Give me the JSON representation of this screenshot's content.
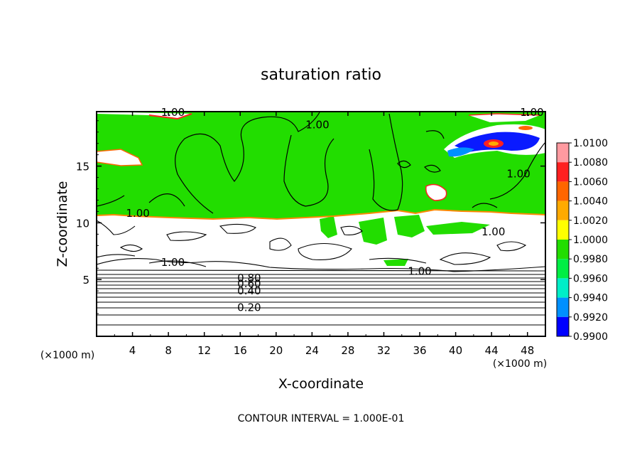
{
  "chart_data": {
    "type": "heatmap",
    "title": "saturation ratio",
    "xlabel": "X-coordinate",
    "ylabel": "Z-coordinate",
    "x_unit": "(×1000 m)",
    "z_unit": "(×1000 m)",
    "footer": "CONTOUR INTERVAL = 1.000E-01",
    "xlim": [
      0,
      50
    ],
    "ylim": [
      0,
      19.8
    ],
    "x_ticks": [
      4,
      8,
      12,
      16,
      20,
      24,
      28,
      32,
      36,
      40,
      44,
      48
    ],
    "y_ticks": [
      5,
      10,
      15
    ],
    "colorbar": {
      "levels": [
        "1.0100",
        "1.0080",
        "1.0060",
        "1.0040",
        "1.0020",
        "1.0000",
        "0.9980",
        "0.9960",
        "0.9940",
        "0.9920",
        "0.9900"
      ],
      "colors": [
        "#ff9aa0",
        "#ff2020",
        "#ff6600",
        "#ffaa00",
        "#ffff00",
        "#22dd00",
        "#00ee44",
        "#00eec8",
        "#0090ff",
        "#0000ff",
        "#4a2a8a"
      ]
    },
    "contour_labels": [
      {
        "text": "1.00",
        "x": 8.5,
        "z": 19.6
      },
      {
        "text": "1.00",
        "x": 48.5,
        "z": 19.6
      },
      {
        "text": "1.00",
        "x": 24.6,
        "z": 18.5
      },
      {
        "text": "1.00",
        "x": 47.0,
        "z": 14.2
      },
      {
        "text": "1.00",
        "x": 4.6,
        "z": 10.7
      },
      {
        "text": "1.00",
        "x": 44.2,
        "z": 9.1
      },
      {
        "text": "1.00",
        "x": 8.5,
        "z": 6.4
      },
      {
        "text": "1.00",
        "x": 36.0,
        "z": 5.6
      },
      {
        "text": "0.80",
        "x": 17.0,
        "z": 5.0
      },
      {
        "text": "0.60",
        "x": 17.0,
        "z": 4.5
      },
      {
        "text": "0.40",
        "x": 17.0,
        "z": 3.9
      },
      {
        "text": "0.20",
        "x": 17.0,
        "z": 2.4
      }
    ]
  }
}
